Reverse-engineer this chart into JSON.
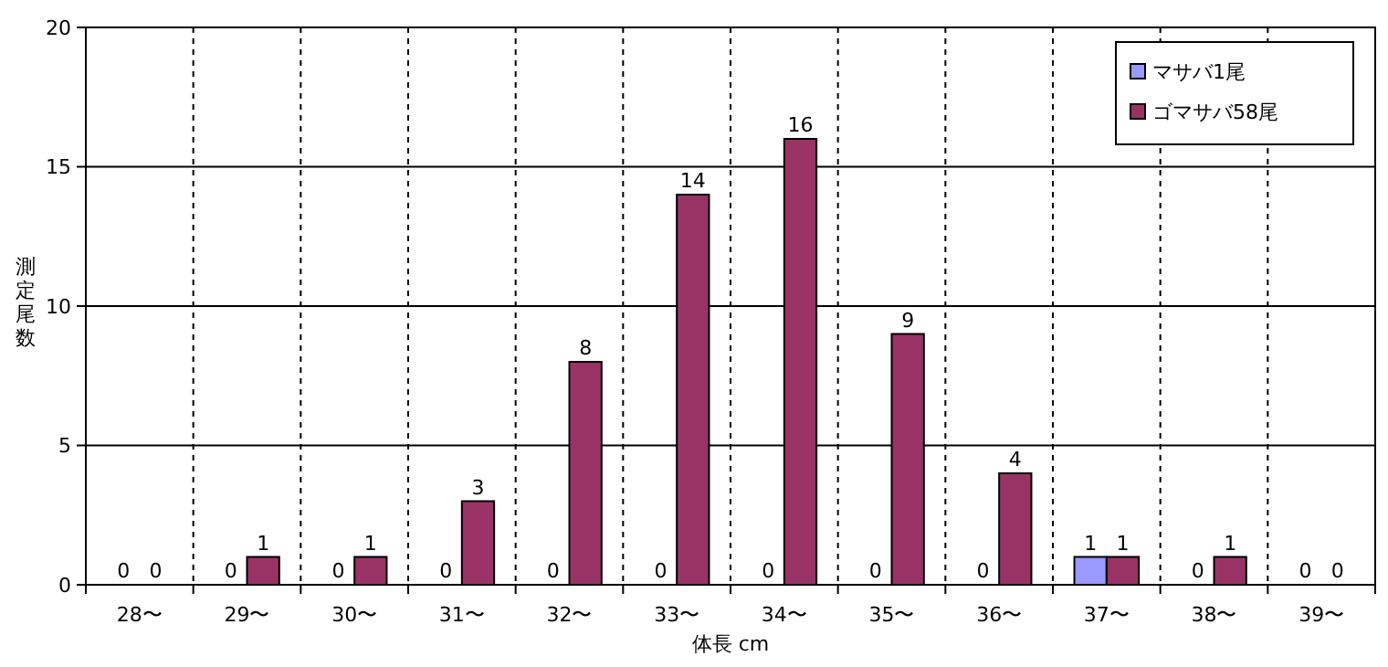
{
  "chart_data": {
    "type": "bar",
    "xlabel": "体長 cm",
    "ylabel": "測定尾数",
    "categories": [
      "28〜",
      "29〜",
      "30〜",
      "31〜",
      "32〜",
      "33〜",
      "34〜",
      "35〜",
      "36〜",
      "37〜",
      "38〜",
      "39〜"
    ],
    "series": [
      {
        "name": "マサバ1尾",
        "color": "#9999ff",
        "values": [
          0,
          0,
          0,
          0,
          0,
          0,
          0,
          0,
          0,
          1,
          0,
          0
        ]
      },
      {
        "name": "ゴマサバ58尾",
        "color": "#993366",
        "values": [
          0,
          1,
          1,
          3,
          8,
          14,
          16,
          9,
          4,
          1,
          1,
          0
        ]
      }
    ],
    "ylim": [
      0,
      20
    ],
    "yticks": [
      0,
      5,
      10,
      15,
      20
    ],
    "grid": true,
    "legend": "top right",
    "data_labels": true
  }
}
